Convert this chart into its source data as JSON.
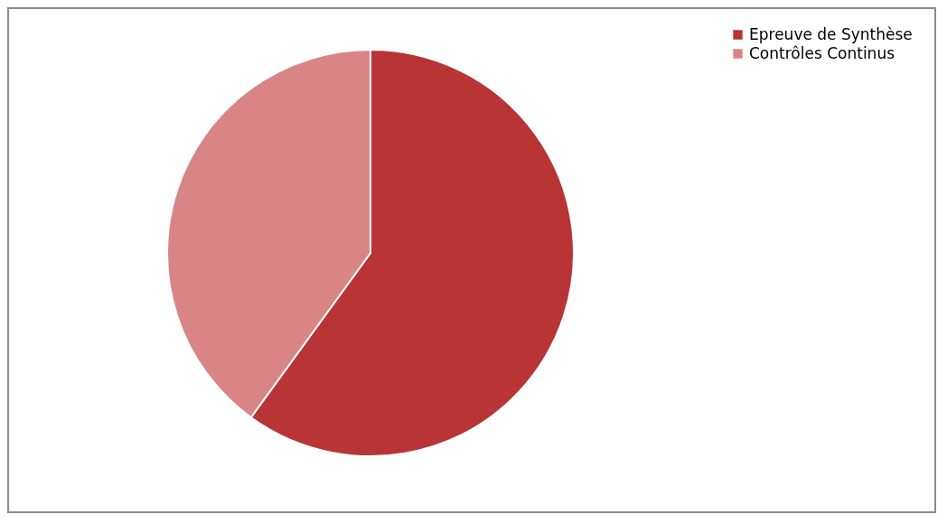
{
  "chart_data": {
    "type": "pie",
    "categories": [
      "Epreuve de Synthèse",
      "Contrôles Continus"
    ],
    "values": [
      60,
      40
    ],
    "colors": [
      "#b93434",
      "#d98585"
    ],
    "legend": "right"
  }
}
